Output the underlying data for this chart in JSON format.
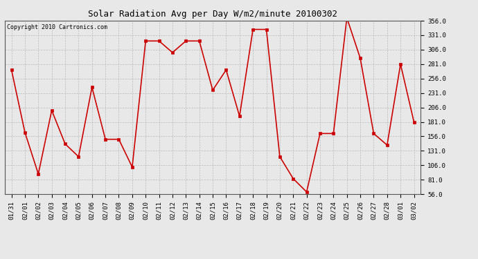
{
  "title": "Solar Radiation Avg per Day W/m2/minute 20100302",
  "copyright": "Copyright 2010 Cartronics.com",
  "labels": [
    "01/31",
    "02/01",
    "02/02",
    "02/03",
    "02/04",
    "02/05",
    "02/06",
    "02/07",
    "02/08",
    "02/09",
    "02/10",
    "02/11",
    "02/12",
    "02/13",
    "02/14",
    "02/15",
    "02/16",
    "02/17",
    "02/18",
    "02/19",
    "02/20",
    "02/21",
    "02/22",
    "02/23",
    "02/24",
    "02/25",
    "02/26",
    "02/27",
    "02/28",
    "03/01",
    "03/02"
  ],
  "values": [
    271,
    163,
    91,
    201,
    143,
    121,
    241,
    151,
    151,
    103,
    321,
    321,
    301,
    321,
    321,
    236,
    271,
    191,
    341,
    341,
    121,
    83,
    60,
    161,
    161,
    361,
    291,
    161,
    141,
    281,
    181
  ],
  "line_color": "#cc0000",
  "marker_color": "#cc0000",
  "bg_color": "#e8e8e8",
  "grid_color": "#bbbbbb",
  "title_fontsize": 9,
  "copyright_fontsize": 6,
  "tick_fontsize": 6.5,
  "ymin": 56.0,
  "ymax": 356.0,
  "yticks": [
    56.0,
    81.0,
    106.0,
    131.0,
    156.0,
    181.0,
    206.0,
    231.0,
    256.0,
    281.0,
    306.0,
    331.0,
    356.0
  ]
}
